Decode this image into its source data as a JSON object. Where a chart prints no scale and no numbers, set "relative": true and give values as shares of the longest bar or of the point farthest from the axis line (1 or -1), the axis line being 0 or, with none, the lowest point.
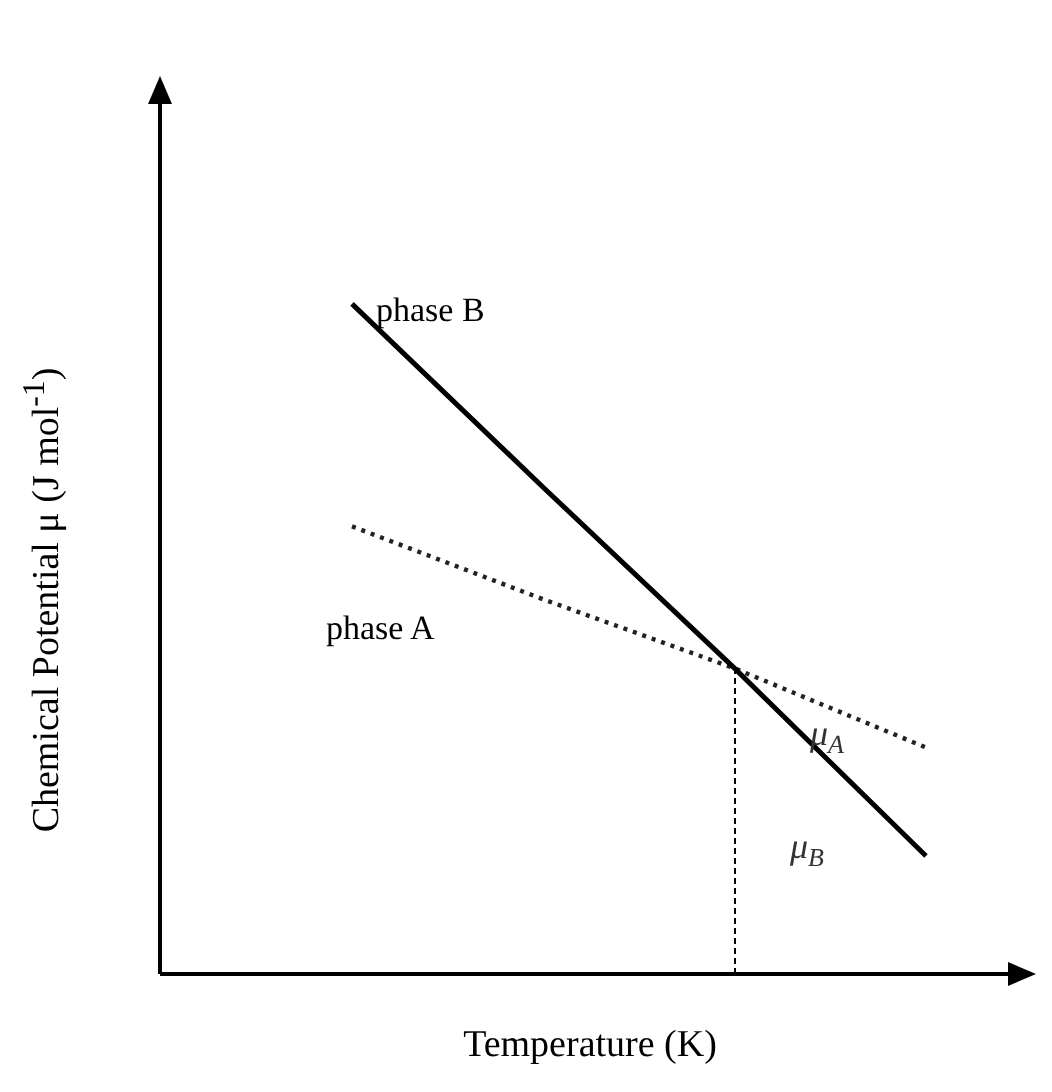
{
  "chart_data": {
    "type": "line",
    "relative": true,
    "xlabel": "Temperature (K)",
    "ylabel": "Chemical Potential μ (J mol$^{-1}$)",
    "tick_labels": false,
    "legend": false,
    "marker": "none",
    "categories": [
      null,
      null,
      null,
      null
    ],
    "series": [
      {
        "name": "phase B",
        "color": "#000000",
        "line_style": "solid",
        "values": [
          1,
          0.726,
          0.456,
          0.176
        ]
      },
      {
        "name": "phase A",
        "color": "#222222",
        "line_style": "dotted",
        "values": [
          0.668,
          0.559,
          0.456,
          0.338
        ]
      }
    ],
    "annotations": [
      "μ$_{A}$",
      "μ$_{B}$"
    ]
  }
}
